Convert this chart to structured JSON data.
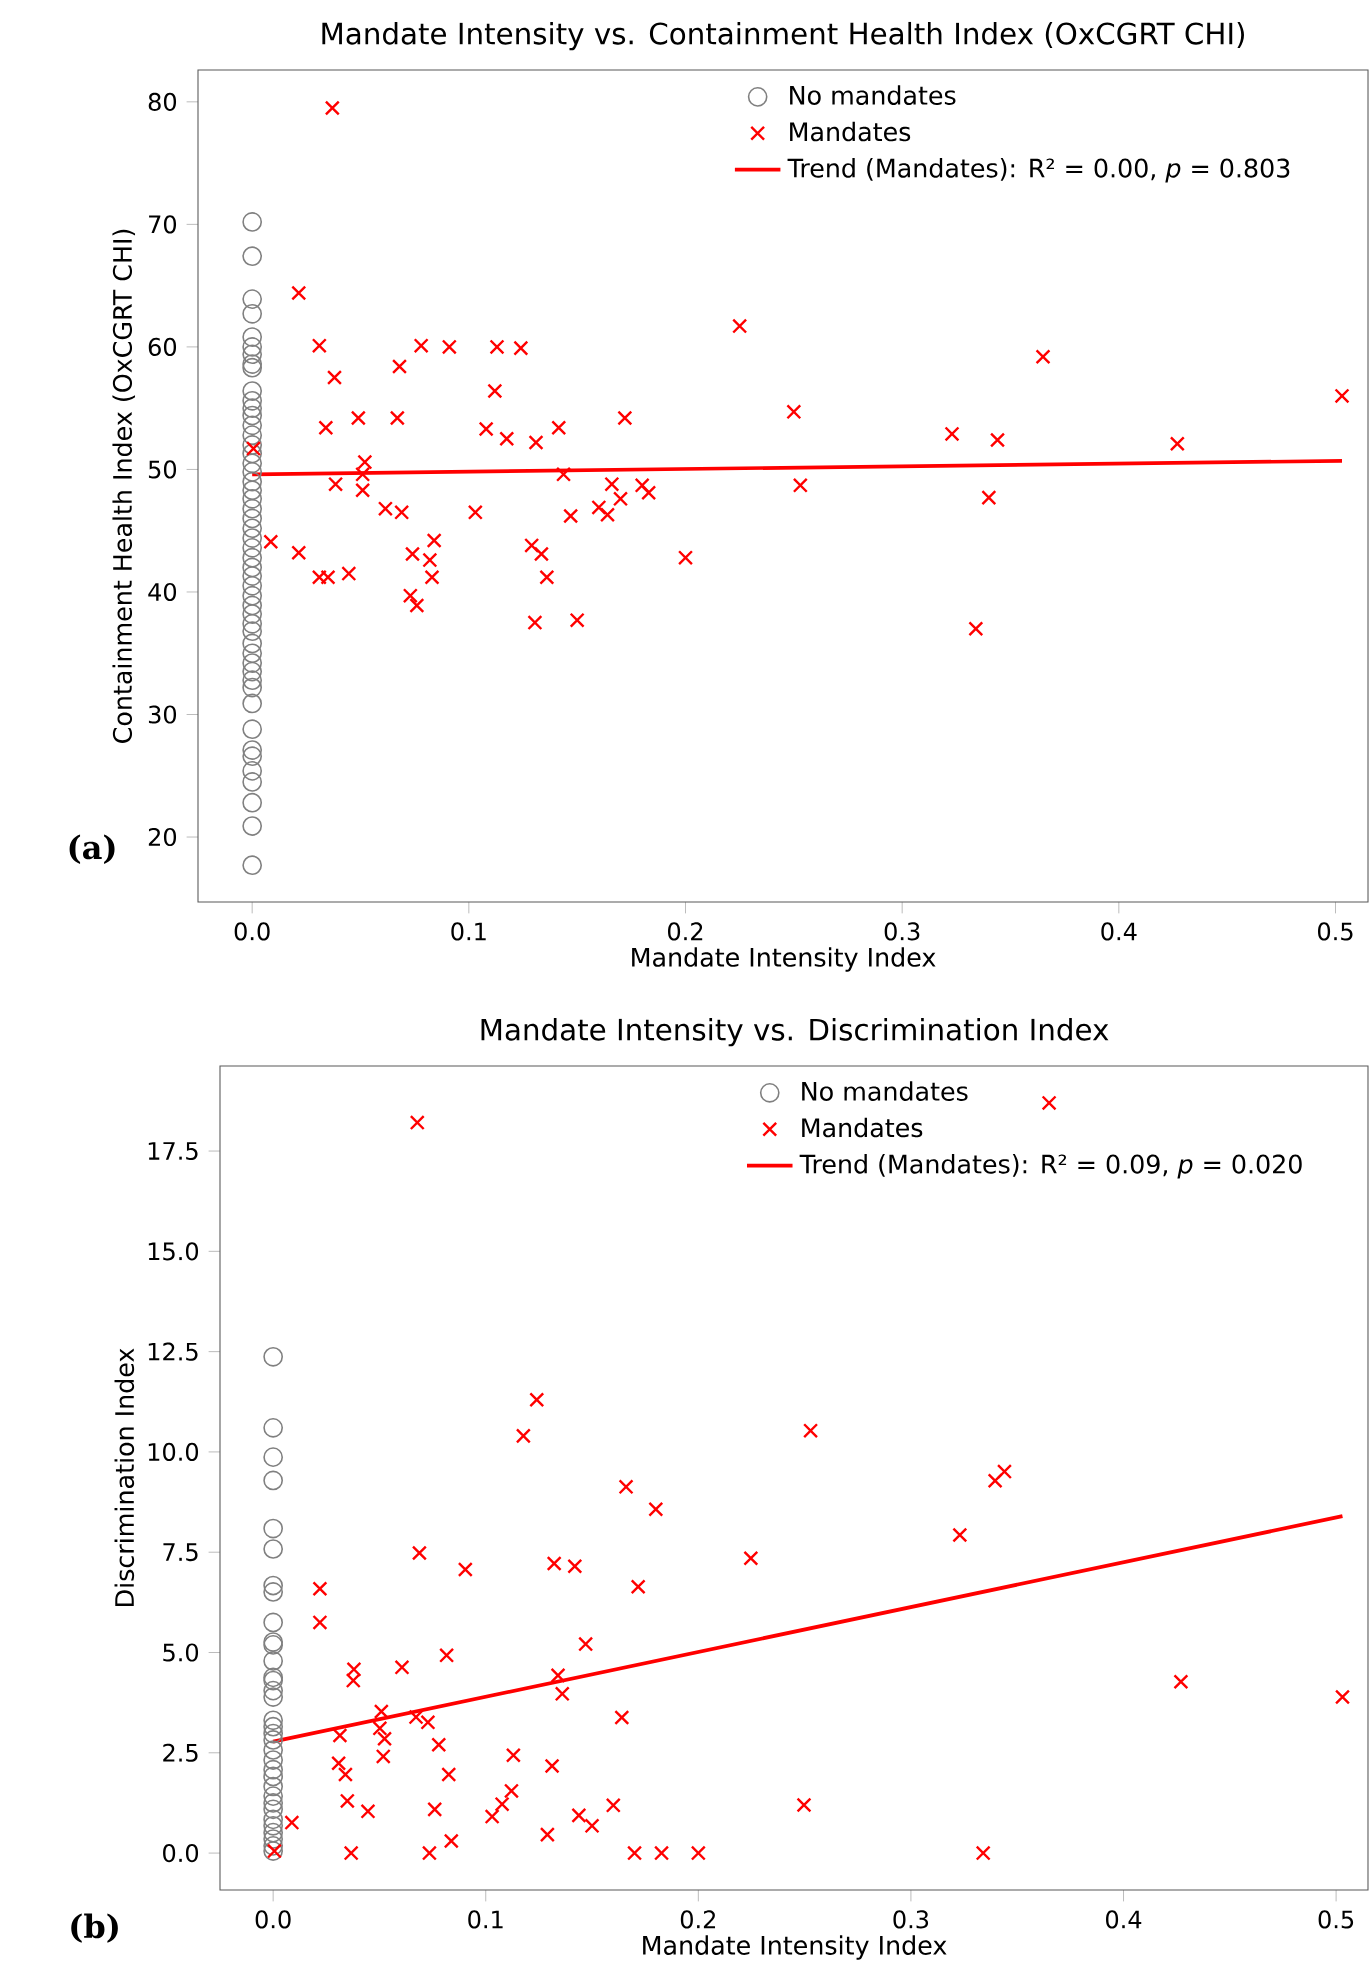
{
  "chart_data": [
    {
      "type": "scatter",
      "title": "Mandate Intensity vs. Containment Health Index (OxCGRT CHI)",
      "xlabel": "Mandate Intensity Index",
      "ylabel": "Containment Health Index (OxCGRT CHI)",
      "xlim": [
        -0.025,
        0.515
      ],
      "ylim": [
        14.7,
        82.6
      ],
      "xticks": [
        {
          "value": 0,
          "label": "0.0"
        },
        0.1,
        0.2,
        0.3,
        0.4,
        0.5
      ],
      "yticks": [
        20,
        30,
        40,
        50,
        60,
        70,
        80
      ],
      "legend": "top",
      "annotations": [
        "(a)"
      ],
      "series": [
        {
          "name": "No mandates",
          "marker": "circle",
          "color": "#808080",
          "x": [
            0,
            0,
            0,
            0,
            0,
            0,
            0,
            0,
            0,
            0,
            0,
            0,
            0,
            0,
            0,
            0,
            0,
            0,
            0,
            0,
            0,
            0,
            0,
            0,
            0,
            0,
            0,
            0,
            0,
            0,
            0,
            0,
            0,
            0,
            0,
            0,
            0,
            0,
            0,
            0,
            0,
            0,
            0,
            0,
            0,
            0,
            0,
            0,
            0,
            0,
            0
          ],
          "values": [
            70.2,
            67.4,
            63.9,
            62.7,
            60.8,
            60.0,
            59.4,
            58.6,
            58.3,
            56.4,
            55.6,
            55.0,
            54.4,
            53.6,
            52.8,
            52.0,
            51.3,
            50.5,
            49.8,
            49.0,
            48.3,
            47.6,
            46.8,
            46.0,
            45.2,
            44.4,
            43.6,
            42.8,
            42.0,
            41.3,
            40.5,
            39.7,
            38.9,
            38.2,
            37.4,
            36.8,
            35.8,
            35.0,
            34.2,
            33.5,
            32.8,
            32.2,
            30.9,
            28.8,
            27.1,
            26.6,
            25.4,
            24.5,
            22.8,
            20.9,
            17.7
          ]
        },
        {
          "name": "Mandates",
          "marker": "cross",
          "color": "#ff0000",
          "x": [
            0.037,
            0.0215,
            0.031,
            0.038,
            0.034,
            0.049,
            0.052,
            0.051,
            0.051,
            0.0385,
            0.0006,
            0.0086,
            0.0215,
            0.031,
            0.035,
            0.0446,
            0.068,
            0.067,
            0.078,
            0.091,
            0.0615,
            0.069,
            0.074,
            0.073,
            0.076,
            0.084,
            0.082,
            0.083,
            0.103,
            0.108,
            0.112,
            0.113,
            0.124,
            0.1175,
            0.131,
            0.1415,
            0.1437,
            0.147,
            0.129,
            0.1335,
            0.136,
            0.1305,
            0.15,
            0.16,
            0.164,
            0.166,
            0.17,
            0.172,
            0.18,
            0.183,
            0.2,
            0.225,
            0.25,
            0.253,
            0.323,
            0.344,
            0.34,
            0.334,
            0.365,
            0.427,
            0.503
          ],
          "values": [
            79.5,
            64.4,
            60.1,
            57.5,
            53.4,
            54.2,
            50.6,
            49.6,
            48.3,
            48.8,
            51.7,
            44.1,
            43.2,
            41.2,
            41.2,
            41.5,
            58.4,
            54.2,
            60.1,
            60.0,
            46.8,
            46.5,
            43.1,
            39.7,
            38.9,
            44.2,
            42.6,
            41.2,
            46.5,
            53.3,
            56.4,
            60.0,
            59.9,
            52.5,
            52.2,
            53.4,
            49.6,
            46.2,
            43.8,
            43.1,
            41.2,
            37.5,
            37.7,
            46.9,
            46.3,
            48.8,
            47.6,
            54.2,
            48.7,
            48.1,
            42.8,
            61.7,
            54.7,
            48.7,
            52.9,
            52.4,
            47.7,
            37.0,
            59.2,
            52.1,
            56.0
          ]
        },
        {
          "name": "Trend (Mandates): R² = 0.00, *p* = 0.803",
          "type": "line",
          "line_style": "solid",
          "color": "#ff0000",
          "x": [
            0,
            0.503
          ],
          "values": [
            49.6,
            50.7
          ]
        }
      ]
    },
    {
      "type": "scatter",
      "title": "Mandate Intensity vs. Discrimination Index",
      "xlabel": "Mandate Intensity Index",
      "ylabel": "Discrimination Index",
      "xlim": [
        -0.025,
        0.515
      ],
      "ylim": [
        -0.92,
        19.62
      ],
      "xticks": [
        {
          "value": 0,
          "label": "0.0"
        },
        0.1,
        0.2,
        0.3,
        0.4,
        0.5
      ],
      "yticks": [
        {
          "value": 0,
          "label": "0.0"
        },
        2.5,
        {
          "value": 5,
          "label": "5.0"
        },
        7.5,
        {
          "value": 10,
          "label": "10.0"
        },
        12.5,
        {
          "value": 15,
          "label": "15.0"
        },
        17.5
      ],
      "legend": "top",
      "annotations": [
        "(b)"
      ],
      "series": [
        {
          "name": "No mandates",
          "marker": "circle",
          "color": "#808080",
          "x": [
            0,
            0,
            0,
            0,
            0,
            0,
            0,
            0,
            0,
            0,
            0,
            0,
            0,
            0,
            0,
            0,
            0,
            0,
            0,
            0,
            0,
            0,
            0,
            0,
            0,
            0,
            0,
            0,
            0,
            0,
            0,
            0,
            0,
            0
          ],
          "values": [
            12.37,
            10.6,
            9.87,
            9.29,
            8.09,
            7.58,
            6.67,
            6.51,
            5.75,
            5.26,
            5.19,
            4.79,
            4.38,
            4.3,
            4.05,
            3.89,
            3.31,
            3.15,
            2.98,
            2.82,
            2.57,
            2.32,
            2.08,
            1.91,
            1.66,
            1.42,
            1.25,
            1.09,
            0.84,
            0.68,
            0.51,
            0.35,
            0.18,
            0.05
          ]
        },
        {
          "name": "Mandates",
          "marker": "cross",
          "color": "#ff0000",
          "x": [
            0.0678,
            0.022,
            0.022,
            0.0314,
            0.0308,
            0.034,
            0.0349,
            0.038,
            0.0377,
            0.0367,
            0.0446,
            0.0088,
            0.0006,
            0.0509,
            0.0502,
            0.0524,
            0.0518,
            0.0606,
            0.0688,
            0.0672,
            0.0728,
            0.0779,
            0.076,
            0.0735,
            0.0816,
            0.0826,
            0.0838,
            0.0904,
            0.103,
            0.1077,
            0.1121,
            0.113,
            0.1177,
            0.124,
            0.1322,
            0.1419,
            0.1312,
            0.129,
            0.134,
            0.136,
            0.147,
            0.1438,
            0.15,
            0.16,
            0.164,
            0.166,
            0.1717,
            0.18,
            0.17,
            0.1827,
            0.2,
            0.2247,
            0.2528,
            0.2497,
            0.323,
            0.3396,
            0.344,
            0.334,
            0.365,
            0.427,
            0.503
          ],
          "values": [
            18.21,
            6.59,
            5.75,
            2.93,
            2.24,
            1.96,
            1.3,
            4.58,
            4.3,
            0.0,
            1.04,
            0.76,
            0.05,
            3.53,
            3.11,
            2.85,
            2.41,
            4.63,
            7.48,
            3.39,
            3.26,
            2.7,
            1.09,
            0.0,
            4.93,
            1.96,
            0.3,
            7.07,
            0.91,
            1.22,
            1.55,
            2.44,
            10.4,
            11.3,
            7.22,
            7.15,
            2.17,
            0.46,
            4.43,
            3.97,
            5.21,
            0.94,
            0.68,
            1.19,
            3.38,
            9.13,
            6.64,
            8.57,
            0.0,
            0.0,
            0.0,
            7.35,
            10.53,
            1.2,
            7.93,
            9.28,
            9.51,
            0.0,
            18.7,
            4.27,
            3.89
          ]
        },
        {
          "name": "Trend (Mandates): R² = 0.09, *p* = 0.020",
          "type": "line",
          "line_style": "solid",
          "color": "#ff0000",
          "x": [
            0,
            0.503
          ],
          "values": [
            2.78,
            8.4
          ]
        }
      ]
    }
  ]
}
